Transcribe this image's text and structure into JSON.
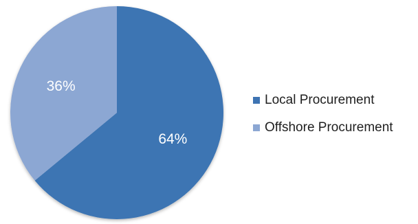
{
  "chart_data": {
    "type": "pie",
    "title": "",
    "slices": [
      {
        "label": "Local Procurement",
        "value": 64,
        "value_label": "64%",
        "color": "#3e74b3"
      },
      {
        "label": "Offshore Procurement",
        "value": 36,
        "value_label": "36%",
        "color": "#8ca7d3"
      }
    ],
    "start": "12 o'clock",
    "direction": "clockwise",
    "legend_position": "right"
  }
}
